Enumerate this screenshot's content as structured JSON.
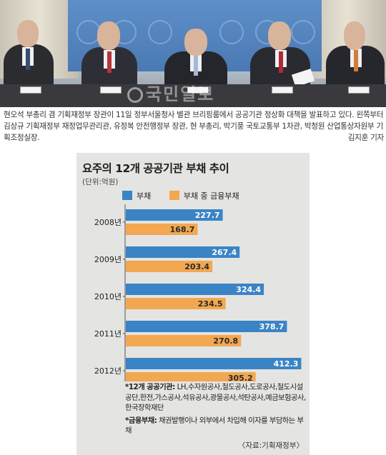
{
  "photo": {
    "watermark": "국민일보"
  },
  "caption": {
    "text": "현오석 부총리 겸 기획재정부 장관이 11일 정부서울청사 별관 브리핑룸에서 공공기관 정상화 대책을 발표하고 있다. 왼쪽부터 김상규 기획재정부 재정업무관리관, 유정복 안전행정부 장관, 현 부총리, 박기풍 국토교통부 1차관, 박청원 산업통상자원부 기획조정실장.",
    "byline": "김지훈 기자"
  },
  "colors": {
    "debt": "#3a84c6",
    "financial_debt": "#f2a750",
    "background": "#e4e4e2"
  },
  "chart_data": {
    "type": "bar",
    "title": "요주의 12개 공공기관 부채 추이",
    "unit": "(단위:억원)",
    "categories": [
      "2008년",
      "2009년",
      "2010년",
      "2011년",
      "2012년"
    ],
    "series": [
      {
        "name": "부채",
        "values": [
          227.7,
          267.4,
          324.4,
          378.7,
          412.3
        ],
        "labels": [
          "227.7",
          "267.4",
          "324.4",
          "378.7",
          "412.3"
        ]
      },
      {
        "name": "부채 중 금융부채",
        "values": [
          168.7,
          203.4,
          234.5,
          270.8,
          305.2
        ],
        "labels": [
          "168.7",
          "203.4",
          "234.5",
          "270.8",
          "305.2"
        ]
      }
    ],
    "xlim": [
      0,
      420
    ],
    "legend": "top"
  },
  "notes": {
    "agencies_label": "*12개 공공기관:",
    "agencies_text": " LH,수자원공사,철도공사,도로공사,철도시설공단,한전,가스공사,석유공사,광물공사,석탄공사,예금보험공사,한국장학재단",
    "financial_label": "*금융부채:",
    "financial_text": " 채권발행이나 외부에서 차입해 이자를 부담하는 부채"
  },
  "source": "〈자료:기획재정부〉"
}
